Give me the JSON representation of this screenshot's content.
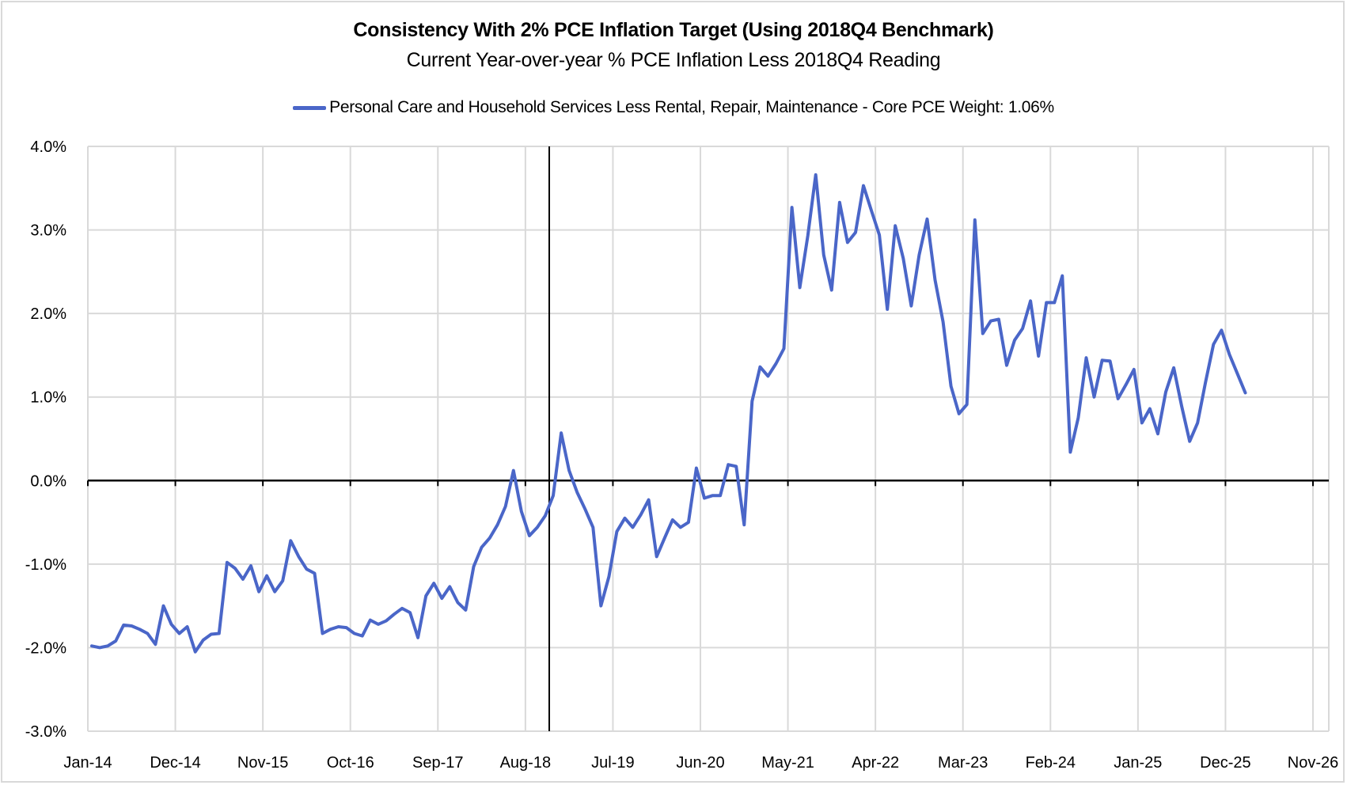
{
  "chart_data": {
    "type": "line",
    "title": "Consistency With 2% PCE Inflation Target (Using 2018Q4 Benchmark)",
    "subtitle": "Current Year-over-year % PCE Inflation Less 2018Q4 Reading",
    "xlabel": "",
    "ylabel": "",
    "ylim": [
      -3.0,
      4.0
    ],
    "y_ticks": [
      4.0,
      3.0,
      2.0,
      1.0,
      0.0,
      -1.0,
      -2.0,
      -3.0
    ],
    "y_tick_labels": [
      "4.0%",
      "3.0%",
      "2.0%",
      "1.0%",
      "0.0%",
      "-1.0%",
      "-2.0%",
      "-3.0%"
    ],
    "x_start": "Jan-14",
    "x_range_months": [
      0,
      156
    ],
    "x_ticks_month_index": [
      0,
      11,
      22,
      33,
      44,
      55,
      66,
      77,
      88,
      99,
      110,
      121,
      132,
      143,
      154
    ],
    "x_tick_labels": [
      "Jan-14",
      "Dec-14",
      "Nov-15",
      "Oct-16",
      "Sep-17",
      "Aug-18",
      "Jul-19",
      "Jun-20",
      "May-21",
      "Apr-22",
      "Mar-23",
      "Feb-24",
      "Jan-25",
      "Dec-25",
      "Nov-26"
    ],
    "grid": true,
    "reference_line": {
      "label": "2018Q4 benchmark",
      "month_index": 58,
      "date": "Nov-18"
    },
    "legend_position": "top-center",
    "series": [
      {
        "name": "Personal Care and Household Services Less Rental, Repair, Maintenance  - Core PCE Weight: 1.06%",
        "color": "#4a66c8",
        "start": "Jan-14",
        "frequency": "monthly",
        "values": [
          -1.98,
          -2.0,
          -1.98,
          -1.92,
          -1.73,
          -1.74,
          -1.78,
          -1.83,
          -1.96,
          -1.5,
          -1.72,
          -1.83,
          -1.75,
          -2.05,
          -1.91,
          -1.84,
          -1.83,
          -0.98,
          -1.05,
          -1.18,
          -1.02,
          -1.33,
          -1.14,
          -1.33,
          -1.2,
          -0.72,
          -0.91,
          -1.06,
          -1.11,
          -1.83,
          -1.78,
          -1.75,
          -1.76,
          -1.83,
          -1.86,
          -1.67,
          -1.72,
          -1.68,
          -1.6,
          -1.53,
          -1.58,
          -1.88,
          -1.38,
          -1.23,
          -1.41,
          -1.27,
          -1.46,
          -1.55,
          -1.03,
          -0.8,
          -0.69,
          -0.53,
          -0.31,
          0.12,
          -0.37,
          -0.66,
          -0.56,
          -0.42,
          -0.18,
          0.57,
          0.12,
          -0.14,
          -0.34,
          -0.56,
          -1.5,
          -1.15,
          -0.61,
          -0.45,
          -0.56,
          -0.41,
          -0.23,
          -0.91,
          -0.69,
          -0.47,
          -0.56,
          -0.5,
          0.15,
          -0.21,
          -0.18,
          -0.18,
          0.19,
          0.17,
          -0.53,
          0.95,
          1.36,
          1.25,
          1.4,
          1.58,
          3.27,
          2.31,
          2.93,
          3.66,
          2.7,
          2.28,
          3.33,
          2.85,
          2.97,
          3.53,
          3.23,
          2.94,
          2.05,
          3.05,
          2.66,
          2.09,
          2.7,
          3.13,
          2.4,
          1.9,
          1.13,
          0.8,
          0.91,
          3.12,
          1.76,
          1.91,
          1.93,
          1.38,
          1.68,
          1.82,
          2.15,
          1.49,
          2.13,
          2.13,
          2.45,
          0.34,
          0.75,
          1.47,
          1.0,
          1.44,
          1.43,
          0.98,
          1.15,
          1.33,
          0.69,
          0.86,
          0.56,
          1.06,
          1.35,
          0.89,
          0.47,
          0.69,
          1.18,
          1.63,
          1.8,
          1.51,
          1.28,
          1.05
        ]
      }
    ]
  }
}
